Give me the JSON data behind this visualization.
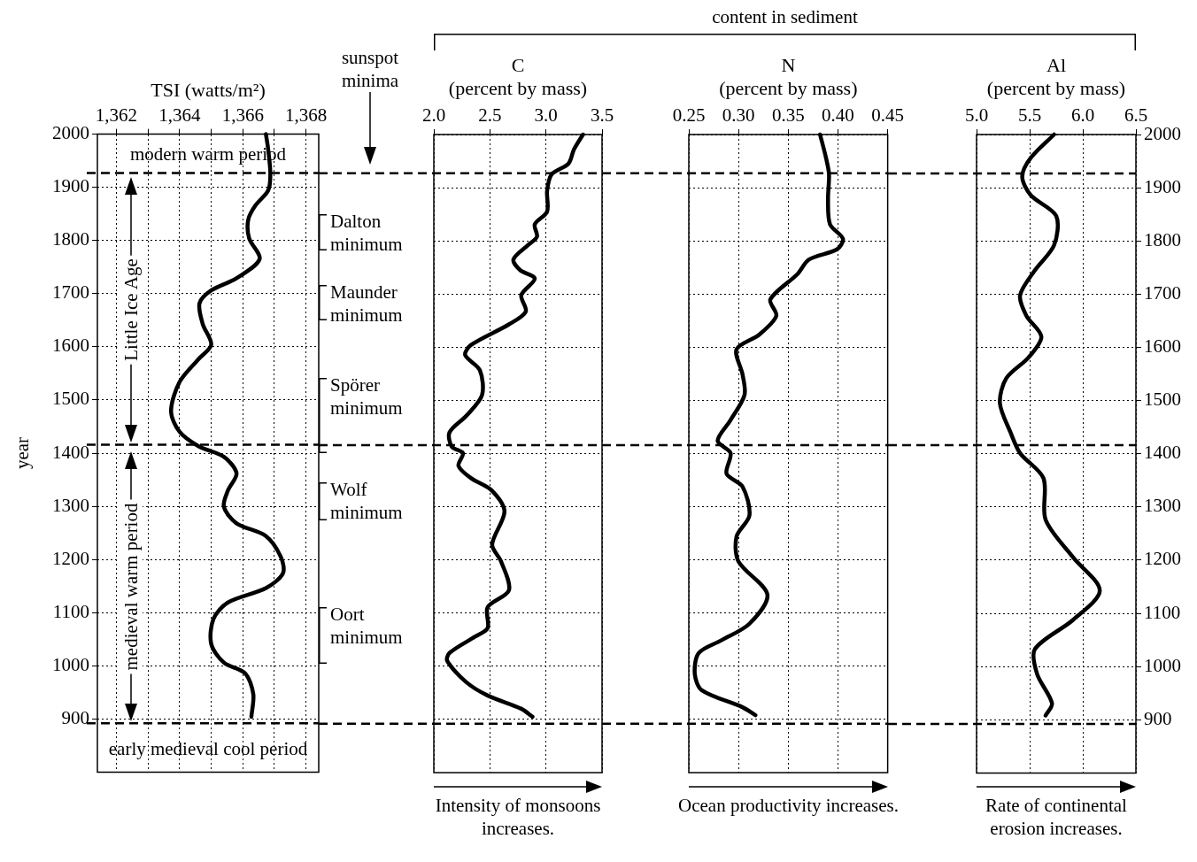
{
  "chart_data": [
    {
      "type": "line",
      "title": "TSI (watts/m²)",
      "ylabel": "year",
      "annotations": [
        "modern warm period",
        "early medieval cool period",
        "Little Ice Age",
        "medieval warm period"
      ],
      "xlim": [
        1361.4,
        1368.4
      ],
      "xticks": [
        {
          "value": 1362,
          "label": "1,362"
        },
        {
          "value": 1363,
          "label": null
        },
        {
          "value": 1364,
          "label": "1,364"
        },
        {
          "value": 1365,
          "label": null
        },
        {
          "value": 1366,
          "label": "1,366"
        },
        {
          "value": 1367,
          "label": null
        },
        {
          "value": 1368,
          "label": "1,368"
        }
      ],
      "ylim": [
        800,
        2000
      ],
      "yticks": [
        900,
        1000,
        1100,
        1200,
        1300,
        1400,
        1500,
        1600,
        1700,
        1800,
        1900,
        2000
      ],
      "grid": true,
      "ref_lines": [
        {
          "axis": "y",
          "value": 1927,
          "color": "#000000",
          "line_style": "dashed"
        },
        {
          "axis": "y",
          "value": 1416,
          "color": "#000000",
          "line_style": "dashed"
        },
        {
          "axis": "y",
          "value": 892,
          "color": "#000000",
          "line_style": "dashed"
        }
      ],
      "series": [
        {
          "color": "#000000",
          "x": [
            1366.73,
            1366.8,
            1366.87,
            1366.8,
            1366.4,
            1366.17,
            1366.2,
            1366.53,
            1365.8,
            1365.0,
            1364.63,
            1364.73,
            1365.0,
            1364.6,
            1364.0,
            1363.73,
            1364.0,
            1364.6,
            1365.4,
            1365.8,
            1365.53,
            1365.4,
            1365.8,
            1366.73,
            1367.2,
            1367.27,
            1366.73,
            1365.53,
            1365.07,
            1365.0,
            1365.4,
            1366.07,
            1366.33,
            1366.27
          ],
          "values": [
            2000,
            1972,
            1925,
            1894,
            1866,
            1839,
            1804,
            1765,
            1729,
            1706,
            1682,
            1643,
            1604,
            1577,
            1534,
            1479,
            1440,
            1413,
            1393,
            1362,
            1330,
            1299,
            1268,
            1244,
            1205,
            1174,
            1146,
            1119,
            1088,
            1041,
            1006,
            986,
            947,
            904
          ]
        }
      ]
    },
    {
      "type": "line",
      "title": "C",
      "subtitle": "(percent by mass)",
      "xlabel": "Intensity of monsoons increases.",
      "annotations": [
        "sunspot minima",
        "Dalton minimum",
        "Maunder minimum",
        "Spörer minimum",
        "Wolf minimum",
        "Oort minimum"
      ],
      "xlim": [
        2,
        3.5
      ],
      "xticks": [
        {
          "value": 2,
          "label": "2.0"
        },
        2.5,
        {
          "value": 3,
          "label": "3.0"
        },
        3.5
      ],
      "ylim": [
        800,
        2000
      ],
      "yticks": [
        900,
        1000,
        1100,
        1200,
        1300,
        1400,
        1500,
        1600,
        1700,
        1800,
        1900,
        2000
      ],
      "tick_labels": "x",
      "grid": true,
      "ref_lines": [
        {
          "axis": "y",
          "value": 1927,
          "color": "#000000",
          "line_style": "dashed"
        },
        {
          "axis": "y",
          "value": 1416,
          "color": "#000000",
          "line_style": "dashed"
        },
        {
          "axis": "y",
          "value": 892,
          "color": "#000000",
          "line_style": "dashed"
        }
      ],
      "series": [
        {
          "color": "#000000",
          "x": [
            3.33,
            3.25,
            3.2,
            3.05,
            3.01,
            3.01,
            2.9,
            2.92,
            2.84,
            2.71,
            2.77,
            2.9,
            2.78,
            2.82,
            2.67,
            2.33,
            2.28,
            2.41,
            2.43,
            2.29,
            2.14,
            2.16,
            2.26,
            2.22,
            2.33,
            2.52,
            2.63,
            2.52,
            2.6,
            2.67,
            2.48,
            2.48,
            2.37,
            2.14,
            2.12,
            2.29,
            2.48,
            2.78,
            2.88
          ],
          "values": [
            2000,
            1972,
            1945,
            1925,
            1894,
            1855,
            1831,
            1808,
            1792,
            1765,
            1745,
            1729,
            1698,
            1667,
            1643,
            1604,
            1585,
            1557,
            1510,
            1471,
            1440,
            1413,
            1401,
            1377,
            1354,
            1330,
            1291,
            1229,
            1197,
            1143,
            1111,
            1072,
            1056,
            1025,
            1010,
            970,
            945,
            920,
            905
          ]
        }
      ]
    },
    {
      "type": "line",
      "title": "N",
      "subtitle": "(percent by mass)",
      "xlabel": "Ocean productivity increases.",
      "annotations": [
        "content in sediment"
      ],
      "xlim": [
        0.25,
        0.45
      ],
      "xticks": [
        0.25,
        {
          "value": 0.3,
          "label": "0.30"
        },
        0.35,
        {
          "value": 0.4,
          "label": "0.40"
        },
        0.45
      ],
      "ylim": [
        800,
        2000
      ],
      "yticks": [
        900,
        1000,
        1100,
        1200,
        1300,
        1400,
        1500,
        1600,
        1700,
        1800,
        1900,
        2000
      ],
      "tick_labels": "x",
      "grid": true,
      "ref_lines": [
        {
          "axis": "y",
          "value": 1927,
          "color": "#000000",
          "line_style": "dashed"
        },
        {
          "axis": "y",
          "value": 1416,
          "color": "#000000",
          "line_style": "dashed"
        },
        {
          "axis": "y",
          "value": 892,
          "color": "#000000",
          "line_style": "dashed"
        }
      ],
      "series": [
        {
          "color": "#000000",
          "x": [
            0.382,
            0.388,
            0.391,
            0.39,
            0.392,
            0.405,
            0.399,
            0.371,
            0.359,
            0.332,
            0.338,
            0.321,
            0.298,
            0.304,
            0.306,
            0.292,
            0.279,
            0.292,
            0.288,
            0.304,
            0.311,
            0.298,
            0.3,
            0.329,
            0.311,
            0.283,
            0.26,
            0.256,
            0.263,
            0.304,
            0.317
          ],
          "values": [
            2000,
            1956,
            1925,
            1878,
            1831,
            1804,
            1784,
            1765,
            1737,
            1690,
            1659,
            1624,
            1596,
            1549,
            1510,
            1463,
            1424,
            1401,
            1362,
            1338,
            1284,
            1244,
            1197,
            1135,
            1080,
            1049,
            1025,
            986,
            955,
            923,
            908
          ]
        }
      ]
    },
    {
      "type": "line",
      "title": "Al",
      "subtitle": "(percent by mass)",
      "xlabel": "Rate of continental erosion increases.",
      "xlim": [
        5,
        6.5
      ],
      "xticks": [
        {
          "value": 5,
          "label": "5.0"
        },
        5.5,
        {
          "value": 6,
          "label": "6.0"
        },
        6.5
      ],
      "y2lim": [
        800,
        2000
      ],
      "y2ticks": [
        900,
        1000,
        1100,
        1200,
        1300,
        1400,
        1500,
        1600,
        1700,
        1800,
        1900,
        2000
      ],
      "grid": true,
      "ref_lines": [
        {
          "axis": "y2",
          "value": 1927,
          "color": "#000000",
          "line_style": "dashed"
        },
        {
          "axis": "y2",
          "value": 1416,
          "color": "#000000",
          "line_style": "dashed"
        },
        {
          "axis": "y2",
          "value": 892,
          "color": "#000000",
          "line_style": "dashed"
        }
      ],
      "series": [
        {
          "color": "#000000",
          "axis": "y2",
          "x": [
            5.73,
            5.51,
            5.43,
            5.51,
            5.75,
            5.73,
            5.55,
            5.41,
            5.47,
            5.61,
            5.49,
            5.28,
            5.22,
            5.32,
            5.41,
            5.63,
            5.65,
            5.91,
            6.16,
            5.91,
            5.55,
            5.57,
            5.71,
            5.65
          ],
          "values": [
            2000,
            1956,
            1921,
            1886,
            1847,
            1792,
            1745,
            1698,
            1659,
            1620,
            1581,
            1542,
            1495,
            1440,
            1401,
            1354,
            1276,
            1205,
            1143,
            1088,
            1033,
            986,
            931,
            908
          ]
        }
      ]
    }
  ]
}
